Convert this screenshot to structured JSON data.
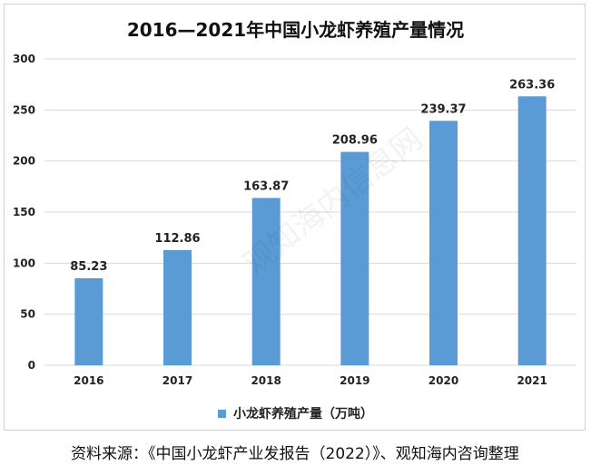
{
  "chart_data": {
    "type": "bar",
    "title": "2016—2021年中国小龙虾养殖产量情况",
    "categories": [
      "2016",
      "2017",
      "2018",
      "2019",
      "2020",
      "2021"
    ],
    "series": [
      {
        "name": "小龙虾养殖产量（万吨）",
        "values": [
          85.23,
          112.86,
          163.87,
          208.96,
          239.37,
          263.36
        ]
      }
    ],
    "data_labels": [
      "85.23",
      "112.86",
      "163.87",
      "208.96",
      "239.37",
      "263.36"
    ],
    "ylim": [
      0,
      300
    ],
    "yticks": [
      0,
      50,
      100,
      150,
      200,
      250,
      300
    ],
    "grid": true,
    "legend_position": "bottom",
    "bar_color": "#5b9bd5"
  },
  "source": "资料来源：《中国小龙虾产业发报告（2022）》、观知海内咨询整理",
  "watermark": "观知海内信息网"
}
